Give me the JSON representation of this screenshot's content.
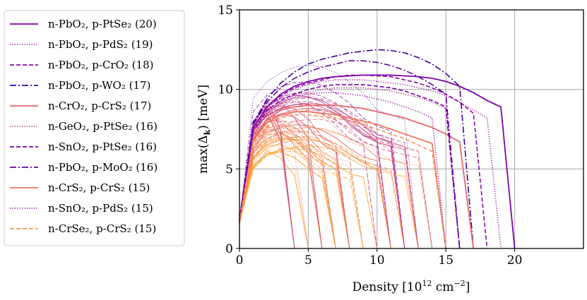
{
  "chart_data": {
    "type": "line",
    "title": "",
    "xlabel": "Density [10",
    "xlabel_exp": "12",
    "xlabel_unit": " cm",
    "xlabel_unit_exp": "−2",
    "xlabel_close": "]",
    "ylabel": "max(Δ",
    "ylabel_sub": "k",
    "ylabel_unit": ") [meV]",
    "xlim": [
      0,
      25
    ],
    "ylim": [
      0,
      15
    ],
    "xticks": [
      0,
      5,
      10,
      15,
      20
    ],
    "yticks": [
      0,
      5,
      10,
      15
    ],
    "grid": true,
    "legend_position": "left-outside",
    "series": [
      {
        "name": "n-PbO₂, p-PtSe₂ (20)",
        "color": "#7e03a8",
        "style": "solid",
        "x": [
          0,
          1,
          2,
          3,
          4,
          5,
          6,
          7,
          8,
          9,
          10,
          11,
          12,
          13,
          14,
          15,
          16,
          17,
          18,
          19,
          20
        ],
        "y": [
          1.8,
          7.6,
          8.9,
          9.7,
          10.2,
          10.5,
          10.7,
          10.8,
          10.85,
          10.9,
          10.9,
          10.9,
          10.85,
          10.8,
          10.7,
          10.5,
          10.2,
          9.8,
          9.3,
          8.9,
          0
        ]
      },
      {
        "name": "n-PbO₂, p-PdS₂ (19)",
        "color": "#a02a9a",
        "style": "dotted",
        "x": [
          0,
          1,
          2,
          3,
          4,
          5,
          6,
          7,
          8,
          9,
          10,
          11,
          12,
          13,
          14,
          15,
          16,
          17,
          18,
          19
        ],
        "y": [
          1.8,
          7.5,
          8.8,
          9.5,
          10.0,
          10.3,
          10.5,
          10.6,
          10.6,
          10.6,
          10.5,
          10.4,
          10.3,
          10.1,
          9.9,
          9.6,
          9.2,
          8.7,
          8.2,
          0
        ]
      },
      {
        "name": "n-PbO₂, p-CrO₂ (18)",
        "color": "#8a0aa5",
        "style": "dashed",
        "x": [
          0,
          1,
          2,
          3,
          4,
          5,
          6,
          7,
          8,
          9,
          10,
          11,
          12,
          13,
          14,
          15,
          16,
          17,
          18
        ],
        "y": [
          1.8,
          7.6,
          8.9,
          9.6,
          10.1,
          10.4,
          10.6,
          10.8,
          10.9,
          10.9,
          10.85,
          10.8,
          10.6,
          10.4,
          10.1,
          9.7,
          9.2,
          8.5,
          0
        ]
      },
      {
        "name": "n-PbO₂, p-WO₂ (17)",
        "color": "#3a049a",
        "style": "dashdot",
        "x": [
          0,
          1,
          2,
          3,
          4,
          5,
          6,
          7,
          8,
          9,
          10,
          11,
          12,
          13,
          14,
          15,
          16,
          17
        ],
        "y": [
          1.8,
          7.9,
          9.4,
          10.4,
          11.1,
          11.6,
          11.9,
          12.1,
          12.3,
          12.4,
          12.5,
          12.45,
          12.3,
          12.0,
          11.6,
          11.0,
          10.2,
          0
        ]
      },
      {
        "name": "n-CrO₂, p-CrS₂ (17)",
        "color": "#e5686b",
        "style": "solid",
        "x": [
          0,
          1,
          2,
          3,
          4,
          5,
          6,
          7,
          8,
          9,
          10,
          11,
          12,
          13,
          14,
          15,
          16,
          17
        ],
        "y": [
          1.6,
          6.9,
          8.1,
          8.7,
          8.9,
          9.0,
          9.0,
          9.0,
          8.9,
          8.8,
          8.6,
          8.4,
          8.2,
          7.9,
          7.6,
          7.2,
          6.7,
          0
        ]
      },
      {
        "name": "n-GeO₂, p-PtSe₂ (16)",
        "color": "#b83289",
        "style": "dotted",
        "x": [
          0,
          1,
          2,
          3,
          4,
          5,
          6,
          7,
          8,
          9,
          10,
          11,
          12,
          13,
          14,
          15,
          16
        ],
        "y": [
          1.7,
          7.3,
          8.6,
          9.2,
          9.6,
          9.8,
          10.0,
          10.1,
          10.1,
          10.1,
          10.0,
          9.9,
          9.7,
          9.5,
          9.2,
          8.8,
          0
        ]
      },
      {
        "name": "n-SnO₂, p-PtSe₂ (16)",
        "color": "#7a02a8",
        "style": "dashed",
        "x": [
          0,
          1,
          2,
          3,
          4,
          5,
          6,
          7,
          8,
          9,
          10,
          11,
          12,
          13,
          14,
          15,
          16
        ],
        "y": [
          1.7,
          7.4,
          8.7,
          9.3,
          9.7,
          10.0,
          10.2,
          10.3,
          10.3,
          10.3,
          10.2,
          10.1,
          9.9,
          9.6,
          9.3,
          8.9,
          0
        ]
      },
      {
        "name": "n-PbO₂, p-MoO₂ (16)",
        "color": "#5c01a6",
        "style": "dashdot",
        "x": [
          0,
          1,
          2,
          3,
          4,
          5,
          6,
          7,
          8,
          9,
          10,
          11,
          12,
          13,
          14,
          15,
          16
        ],
        "y": [
          1.8,
          7.8,
          9.2,
          10.1,
          10.7,
          11.1,
          11.4,
          11.6,
          11.8,
          11.8,
          11.7,
          11.5,
          11.2,
          10.8,
          10.3,
          9.7,
          0
        ]
      },
      {
        "name": "n-CrS₂, p-CrS₂ (15)",
        "color": "#ef7a5d",
        "style": "solid",
        "x": [
          0,
          1,
          2,
          3,
          4,
          5,
          6,
          7,
          8,
          9,
          10,
          11,
          12,
          13,
          14,
          15
        ],
        "y": [
          1.6,
          6.8,
          7.9,
          8.4,
          8.6,
          8.6,
          8.5,
          8.4,
          8.2,
          8.0,
          7.8,
          7.5,
          7.2,
          6.9,
          6.6,
          0
        ]
      },
      {
        "name": "n-SnO₂, p-PdS₂ (15)",
        "color": "#9a1b9f",
        "style": "dotted",
        "x": [
          0,
          1,
          2,
          3,
          4,
          5,
          6,
          7,
          8,
          9,
          10,
          11,
          12,
          13,
          14,
          15
        ],
        "y": [
          1.7,
          7.3,
          8.5,
          9.1,
          9.5,
          9.7,
          9.8,
          9.8,
          9.7,
          9.6,
          9.4,
          9.2,
          8.9,
          8.6,
          8.2,
          0
        ]
      },
      {
        "name": "n-CrSe₂, p-CrS₂ (15)",
        "color": "#f79a63",
        "style": "dashed",
        "x": [
          0,
          1,
          2,
          3,
          4,
          5,
          6,
          7,
          8,
          9,
          10,
          11,
          12,
          13,
          14,
          15
        ],
        "y": [
          1.6,
          6.7,
          7.7,
          8.2,
          8.4,
          8.4,
          8.3,
          8.2,
          8.0,
          7.8,
          7.5,
          7.2,
          6.9,
          6.5,
          6.1,
          0
        ]
      }
    ],
    "background_series_count": 70
  }
}
